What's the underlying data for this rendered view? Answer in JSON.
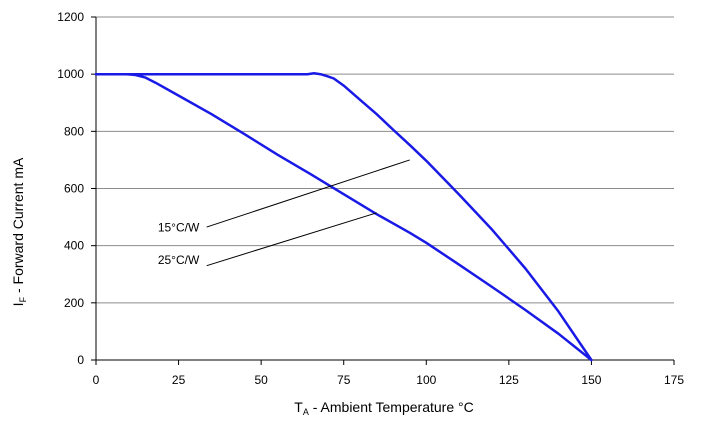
{
  "chart_data": {
    "type": "line",
    "title": "",
    "xlabel": {
      "main": "T",
      "sub": "A",
      "rest": " - Ambient Temperature °C"
    },
    "ylabel": {
      "main": "I",
      "sub": "F",
      "rest": " - Forward Current mA"
    },
    "xlim": [
      0,
      175
    ],
    "ylim": [
      0,
      1200
    ],
    "xticks": [
      0,
      25,
      50,
      75,
      100,
      125,
      150,
      175
    ],
    "yticks": [
      0,
      200,
      400,
      600,
      800,
      1000,
      1200
    ],
    "grid": {
      "horizontal": true,
      "vertical": false
    },
    "series_color": "#1a1ae6",
    "series": [
      {
        "x": [
          0,
          5,
          10,
          20,
          30,
          40,
          50,
          60,
          62,
          64,
          66,
          68,
          70,
          72,
          75,
          80,
          85,
          90,
          95,
          100,
          110,
          120,
          130,
          140,
          150
        ],
        "y": [
          1000,
          1000,
          1000,
          1000,
          1000,
          1000,
          1000,
          1000,
          1000,
          1000,
          1003,
          1000,
          993,
          985,
          960,
          910,
          860,
          805,
          752,
          697,
          578,
          455,
          320,
          170,
          0
        ]
      },
      {
        "x": [
          0,
          5,
          9,
          12,
          15,
          18,
          25,
          35,
          45,
          55,
          65,
          75,
          85,
          95,
          100,
          110,
          120,
          130,
          140,
          150
        ],
        "y": [
          1000,
          1000,
          1000,
          997,
          988,
          970,
          925,
          860,
          790,
          718,
          650,
          580,
          510,
          445,
          410,
          333,
          255,
          175,
          92,
          0
        ]
      }
    ],
    "annotations": [
      {
        "text": "15°C/W",
        "label_x": 25,
        "label_y": 450,
        "line_from": [
          33.5,
          465
        ],
        "line_to": [
          95,
          700
        ]
      },
      {
        "text": "25°C/W",
        "label_x": 25,
        "label_y": 335,
        "line_from": [
          33.5,
          330
        ],
        "line_to": [
          85,
          515
        ]
      }
    ]
  }
}
